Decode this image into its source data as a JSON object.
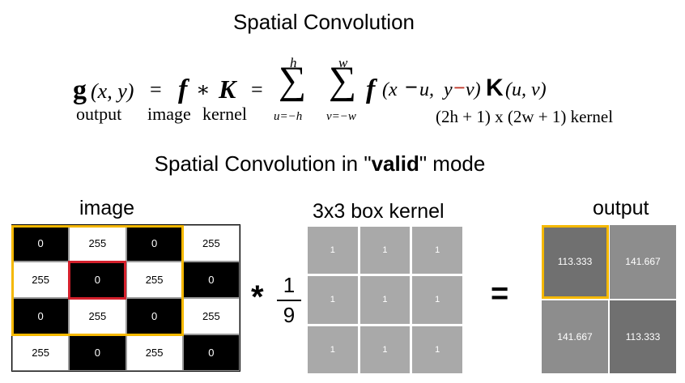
{
  "title": "Spatial Convolution",
  "subtitle": {
    "prefix": "Spatial Convolution in \"",
    "bold": "valid",
    "suffix": "\" mode"
  },
  "formula": {
    "lhs": "g",
    "lhs_args": "(x, y)",
    "eq1": "=",
    "f": "f",
    "star": "∗",
    "K": "K",
    "eq2": "=",
    "sum1_top": "h",
    "sum1_bottom": "u=−h",
    "sum2_top": "w",
    "sum2_bottom": "v=−w",
    "sigma": "∑",
    "f2": "f",
    "x_part": "(x",
    "minus1": "−",
    "u_part": "u, ",
    "y_part": "y",
    "minus2": "−",
    "v_part": "v)",
    "K2": "K",
    "uv": "(u, v)",
    "label_output": "output",
    "label_image": "image",
    "label_kernel": "kernel",
    "kernel_size": "(2h + 1) x (2w + 1) kernel"
  },
  "labels": {
    "image": "image",
    "kernel": "3x3 box kernel",
    "output": "output"
  },
  "image_grid": [
    [
      "0",
      "255",
      "0",
      "255"
    ],
    [
      "255",
      "0",
      "255",
      "0"
    ],
    [
      "0",
      "255",
      "0",
      "255"
    ],
    [
      "255",
      "0",
      "255",
      "0"
    ]
  ],
  "kernel_grid": [
    [
      "1",
      "1",
      "1"
    ],
    [
      "1",
      "1",
      "1"
    ],
    [
      "1",
      "1",
      "1"
    ]
  ],
  "fraction": {
    "numerator": "1",
    "denominator": "9"
  },
  "operators": {
    "convolve": "*",
    "equals": "="
  },
  "output_grid": [
    [
      "113.333",
      "141.667"
    ],
    [
      "141.667",
      "113.333"
    ]
  ],
  "colors": {
    "highlight_window": "#f5b800",
    "highlight_center": "#d4202c",
    "kernel_cell": "#a9a9a9",
    "output_low": "#707070",
    "output_high": "#8d8d8d",
    "formula_red": "#c0392b"
  }
}
